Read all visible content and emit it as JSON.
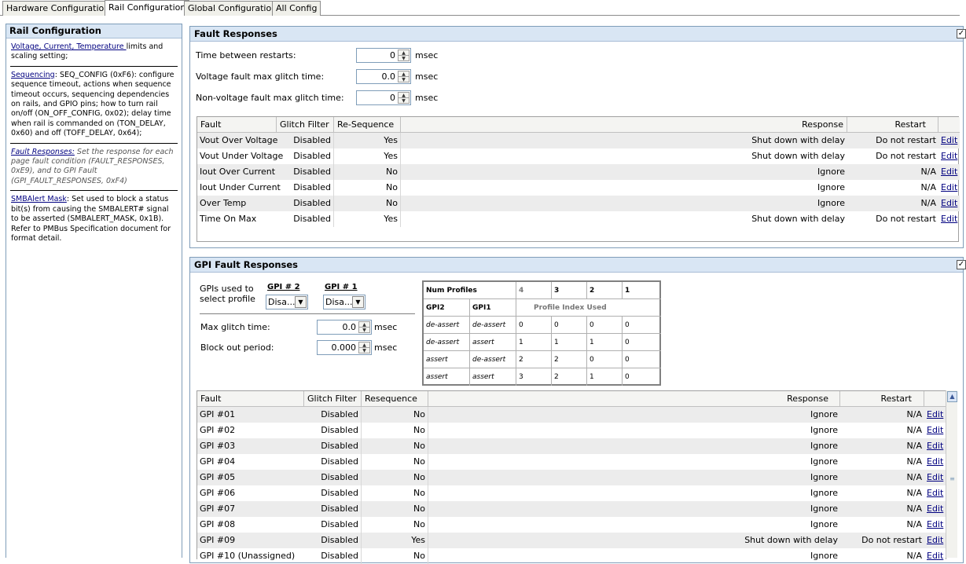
{
  "tabs": [
    "Hardware Configuration",
    "Rail Configuration",
    "Global Configuration",
    "All Config"
  ],
  "left_panel": {
    "title": "Rail Configuration",
    "sec1_link": "Voltage, Current, Temperature ",
    "sec1_text": "limits and scaling setting;",
    "sec2_link": "Sequencing",
    "sec2_text": ": SEQ_CONFIG (0xF6): configure sequence timeout, actions when sequence timeout occurs, sequencing dependencies on rails, and GPIO pins; how to turn rail on/off (ON_OFF_CONFIG, 0x02); delay time when rail is commanded on (TON_DELAY, 0x60) and off (TOFF_DELAY, 0x64);",
    "sec3_link": "Fault Responses:",
    "sec3_text": " Set the response for each page fault condition (FAULT_RESPONSES, 0xE9), and to GPI Fault (GPI_FAULT_RESPONSES, 0xF4)",
    "sec4_link": "SMBAlert Mask",
    "sec4_text": ": Set used to block a status bit(s) from causing the SMBALERT# signal to be asserted (SMBALERT_MASK, 0x1B). Refer to PMBus Specification document for format detail."
  },
  "fault_panel": {
    "title": "Fault Responses",
    "checkbox": "✓",
    "fields": [
      {
        "label": "Time between restarts:",
        "value": "0",
        "unit": "msec"
      },
      {
        "label": "Voltage fault max glitch time:",
        "value": "0.0",
        "unit": "msec"
      },
      {
        "label": "Non-voltage fault max glitch time:",
        "value": "0",
        "unit": "msec"
      }
    ],
    "headers": [
      "Fault",
      "Glitch Filter",
      "Re-Sequence",
      "Response",
      "Restart"
    ],
    "rows": [
      [
        "Vout Over Voltage",
        "Disabled",
        "Yes",
        "Shut down with delay",
        "Do not restart",
        "Edit"
      ],
      [
        "Vout Under Voltage",
        "Disabled",
        "Yes",
        "Shut down with delay",
        "Do not restart",
        "Edit"
      ],
      [
        "Iout Over Current",
        "Disabled",
        "No",
        "Ignore",
        "N/A",
        "Edit"
      ],
      [
        "Iout Under Current",
        "Disabled",
        "No",
        "Ignore",
        "N/A",
        "Edit"
      ],
      [
        "Over Temp",
        "Disabled",
        "No",
        "Ignore",
        "N/A",
        "Edit"
      ],
      [
        "Time On Max",
        "Disabled",
        "Yes",
        "Shut down with delay",
        "Do not restart",
        "Edit"
      ]
    ]
  },
  "gpi_panel": {
    "title": "GPI Fault Responses",
    "checkbox": "✓",
    "gpis_label_1": "GPIs used to",
    "gpis_label_2": "select profile",
    "gpi2_label": "GPI # 2",
    "gpi1_label": "GPI # 1",
    "gpi2_value": "Disa...",
    "gpi1_value": "Disa...",
    "max_glitch_label": "Max glitch time:",
    "max_glitch_value": "0.0",
    "block_out_label": "Block out period:",
    "block_out_value": "0.000",
    "unit": "msec",
    "profile_table": {
      "num_profiles_label": "Num Profiles",
      "num_profiles": [
        "4",
        "3",
        "2",
        "1"
      ],
      "gpi2_head": "GPI2",
      "gpi1_head": "GPI1",
      "profile_index_label": "Profile Index Used",
      "rows": [
        [
          "de-assert",
          "de-assert",
          "0",
          "0",
          "0",
          "0"
        ],
        [
          "de-assert",
          "assert",
          "1",
          "1",
          "1",
          "0"
        ],
        [
          "assert",
          "de-assert",
          "2",
          "2",
          "0",
          "0"
        ],
        [
          "assert",
          "assert",
          "3",
          "2",
          "1",
          "0"
        ]
      ]
    },
    "headers": [
      "Fault",
      "Glitch Filter",
      "Resequence",
      "Response",
      "Restart"
    ],
    "rows": [
      [
        "GPI #01",
        "Disabled",
        "No",
        "Ignore",
        "N/A",
        "Edit"
      ],
      [
        "GPI #02",
        "Disabled",
        "No",
        "Ignore",
        "N/A",
        "Edit"
      ],
      [
        "GPI #03",
        "Disabled",
        "No",
        "Ignore",
        "N/A",
        "Edit"
      ],
      [
        "GPI #04",
        "Disabled",
        "No",
        "Ignore",
        "N/A",
        "Edit"
      ],
      [
        "GPI #05",
        "Disabled",
        "No",
        "Ignore",
        "N/A",
        "Edit"
      ],
      [
        "GPI #06",
        "Disabled",
        "No",
        "Ignore",
        "N/A",
        "Edit"
      ],
      [
        "GPI #07",
        "Disabled",
        "No",
        "Ignore",
        "N/A",
        "Edit"
      ],
      [
        "GPI #08",
        "Disabled",
        "No",
        "Ignore",
        "N/A",
        "Edit"
      ],
      [
        "GPI #09",
        "Disabled",
        "Yes",
        "Shut down with delay",
        "Do not restart",
        "Edit"
      ],
      [
        "GPI #10 (Unassigned)",
        "Disabled",
        "No",
        "Ignore",
        "N/A",
        "Edit"
      ]
    ]
  }
}
